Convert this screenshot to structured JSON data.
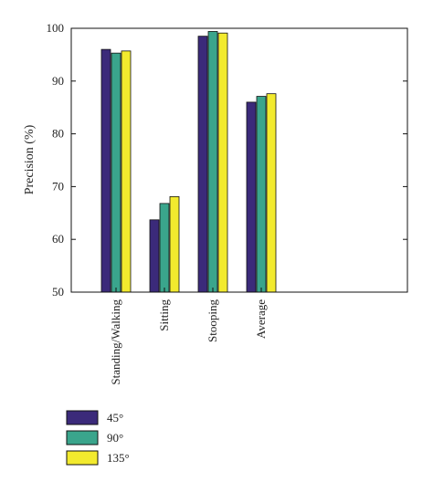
{
  "chart_data": {
    "type": "bar",
    "title": "",
    "xlabel": "",
    "ylabel": "Precision (%)",
    "ylim": [
      50,
      100
    ],
    "yticks": [
      50,
      60,
      70,
      80,
      90,
      100
    ],
    "categories": [
      "Standing/Walking",
      "Sitting",
      "Stooping",
      "Average"
    ],
    "series": [
      {
        "name": "45°",
        "color": "#3b2a7a",
        "values": [
          96.0,
          63.7,
          98.5,
          86.0
        ]
      },
      {
        "name": "90°",
        "color": "#3aa58c",
        "values": [
          95.3,
          66.8,
          99.4,
          87.1
        ]
      },
      {
        "name": "135°",
        "color": "#f2ea2e",
        "values": [
          95.7,
          68.1,
          99.1,
          87.6
        ]
      }
    ],
    "grid": false,
    "legend_position": "bottom-left"
  }
}
